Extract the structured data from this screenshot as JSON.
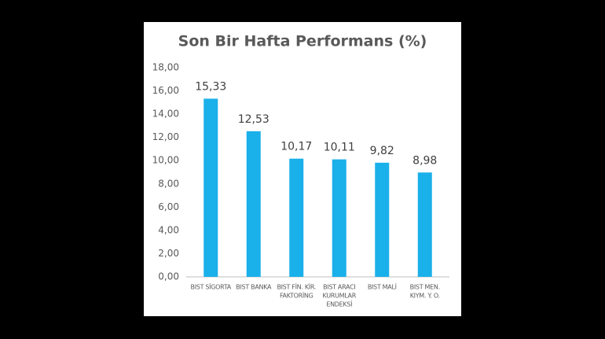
{
  "chart_data": {
    "type": "bar",
    "title": "Son Bir Hafta Performans (%)",
    "categories": [
      [
        "BIST SİGORTA"
      ],
      [
        "BIST BANKA"
      ],
      [
        "BIST FİN. KİR.",
        "FAKTORİNG"
      ],
      [
        "BIST ARACI",
        "KURUMLAR",
        "ENDEKSİ"
      ],
      [
        "BIST MALİ"
      ],
      [
        "BIST MEN.",
        "KIYM. Y. O."
      ]
    ],
    "values": [
      15.33,
      12.53,
      10.17,
      10.11,
      9.82,
      8.98
    ],
    "value_labels": [
      "15,33",
      "12,53",
      "10,17",
      "10,11",
      "9,82",
      "8,98"
    ],
    "color": "#1ab0ea",
    "ylim": [
      0,
      18
    ],
    "yticks": [
      {
        "value": 0,
        "label": "0,00"
      },
      {
        "value": 2,
        "label": "2,00"
      },
      {
        "value": 4,
        "label": "4,00"
      },
      {
        "value": 6,
        "label": "6,00"
      },
      {
        "value": 8,
        "label": "8,00"
      },
      {
        "value": 10,
        "label": "10,00"
      },
      {
        "value": 12,
        "label": "12,00"
      },
      {
        "value": 14,
        "label": "14,00"
      },
      {
        "value": 16,
        "label": "16,00"
      },
      {
        "value": 18,
        "label": "18,00"
      }
    ],
    "grid": false
  }
}
